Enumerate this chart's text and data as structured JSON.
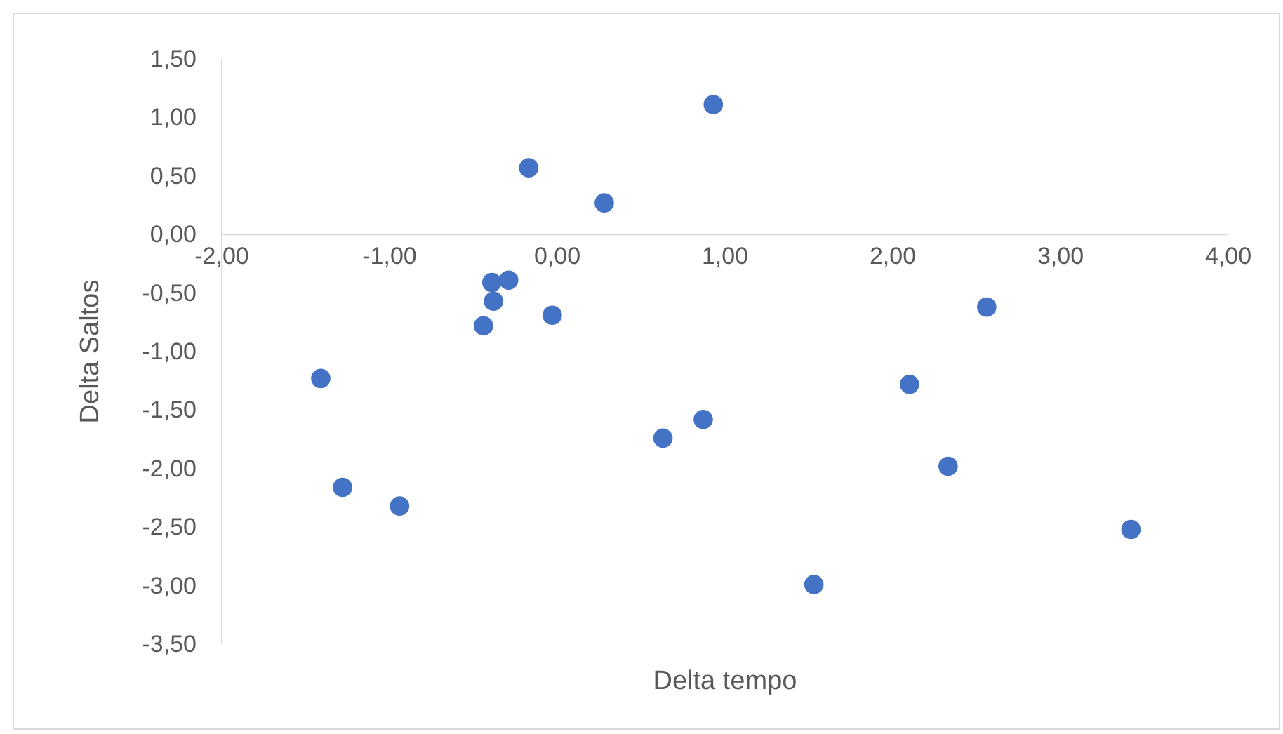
{
  "chart_data": {
    "type": "scatter",
    "xlabel": "Delta tempo",
    "ylabel": "Delta Saltos",
    "marker": "circle",
    "grid": false,
    "xlim": [
      -2,
      4
    ],
    "ylim": [
      -3.5,
      1.5
    ],
    "xticks": [
      {
        "value": -2,
        "label": "-2,00"
      },
      {
        "value": -1,
        "label": "-1,00"
      },
      {
        "value": 0,
        "label": "0,00"
      },
      {
        "value": 1,
        "label": "1,00"
      },
      {
        "value": 2,
        "label": "2,00"
      },
      {
        "value": 3,
        "label": "3,00"
      },
      {
        "value": 4,
        "label": "4,00"
      }
    ],
    "yticks": [
      {
        "value": 1.5,
        "label": "1,50"
      },
      {
        "value": 1,
        "label": "1,00"
      },
      {
        "value": 0.5,
        "label": "0,50"
      },
      {
        "value": 0,
        "label": "0,00"
      },
      {
        "value": -0.5,
        "label": "-0,50"
      },
      {
        "value": -1,
        "label": "-1,00"
      },
      {
        "value": -1.5,
        "label": "-1,50"
      },
      {
        "value": -2,
        "label": "-2,00"
      },
      {
        "value": -2.5,
        "label": "-2,50"
      },
      {
        "value": -3,
        "label": "-3,00"
      },
      {
        "value": -3.5,
        "label": "-3,50"
      }
    ],
    "series": [
      {
        "color": "#4472c4",
        "x": [
          0.93,
          -0.17,
          0.28,
          -0.29,
          -0.39,
          -0.38,
          -0.44,
          -0.03,
          2.56,
          -1.41,
          2.1,
          0.63,
          0.87,
          -1.28,
          -0.94,
          2.33,
          3.42,
          1.53
        ],
        "values": [
          1.11,
          0.57,
          0.27,
          -0.39,
          -0.41,
          -0.57,
          -0.78,
          -0.69,
          -0.62,
          -1.23,
          -1.28,
          -1.74,
          -1.58,
          -2.16,
          -2.32,
          -1.98,
          -2.52,
          -2.99
        ]
      }
    ]
  }
}
